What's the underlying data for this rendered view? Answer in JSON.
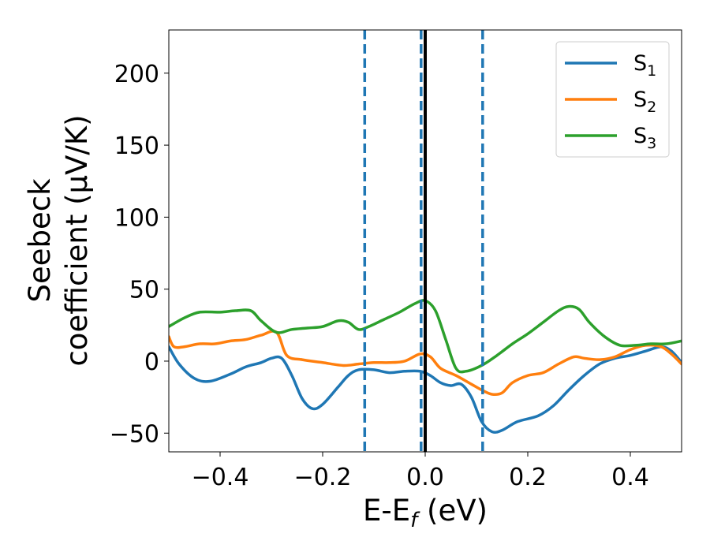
{
  "chart_data": {
    "type": "line",
    "xlabel": {
      "main": "E-E",
      "sub": "f",
      "tail": " (eV)"
    },
    "ylabel": {
      "line1": "Seebeck",
      "line2": "coefficient  (μV/K)"
    },
    "xlim": [
      -0.5,
      0.5
    ],
    "ylim": [
      -63,
      230
    ],
    "x_ticks": [
      -0.4,
      -0.2,
      0.0,
      0.2,
      0.4
    ],
    "x_tick_labels": [
      "−0.4",
      "−0.2",
      "0.0",
      "0.2",
      "0.4"
    ],
    "y_ticks": [
      -50,
      0,
      50,
      100,
      150,
      200
    ],
    "y_tick_labels": [
      "−50",
      "0",
      "50",
      "100",
      "150",
      "200"
    ],
    "grid": false,
    "legend_position": "top-right",
    "vertical_lines": [
      {
        "x": -0.118,
        "style": "dashed",
        "color": "#1f77b4"
      },
      {
        "x": -0.008,
        "style": "dashed",
        "color": "#1f77b4"
      },
      {
        "x": 0.112,
        "style": "dashed",
        "color": "#1f77b4"
      },
      {
        "x": 0.0,
        "style": "solid",
        "color": "#000000"
      }
    ],
    "series": [
      {
        "name": "S",
        "sub": "1",
        "color": "#1f77b4",
        "points": [
          [
            -0.5,
            10
          ],
          [
            -0.48,
            -2
          ],
          [
            -0.45,
            -12
          ],
          [
            -0.42,
            -14
          ],
          [
            -0.38,
            -9
          ],
          [
            -0.35,
            -4
          ],
          [
            -0.32,
            -1
          ],
          [
            -0.3,
            2
          ],
          [
            -0.28,
            2
          ],
          [
            -0.26,
            -10
          ],
          [
            -0.24,
            -26
          ],
          [
            -0.22,
            -33
          ],
          [
            -0.2,
            -30
          ],
          [
            -0.17,
            -18
          ],
          [
            -0.15,
            -10
          ],
          [
            -0.13,
            -6
          ],
          [
            -0.1,
            -6
          ],
          [
            -0.07,
            -8
          ],
          [
            -0.04,
            -7
          ],
          [
            -0.01,
            -7
          ],
          [
            0.01,
            -10
          ],
          [
            0.03,
            -15
          ],
          [
            0.05,
            -17
          ],
          [
            0.07,
            -16
          ],
          [
            0.09,
            -25
          ],
          [
            0.11,
            -42
          ],
          [
            0.13,
            -49
          ],
          [
            0.15,
            -48
          ],
          [
            0.18,
            -42
          ],
          [
            0.22,
            -38
          ],
          [
            0.25,
            -31
          ],
          [
            0.28,
            -20
          ],
          [
            0.31,
            -10
          ],
          [
            0.34,
            -2
          ],
          [
            0.37,
            2
          ],
          [
            0.4,
            4
          ],
          [
            0.43,
            7
          ],
          [
            0.46,
            10
          ],
          [
            0.48,
            7
          ],
          [
            0.5,
            -1
          ]
        ]
      },
      {
        "name": "S",
        "sub": "2",
        "color": "#ff7f0e",
        "points": [
          [
            -0.5,
            17
          ],
          [
            -0.49,
            10
          ],
          [
            -0.47,
            10
          ],
          [
            -0.44,
            12
          ],
          [
            -0.41,
            12
          ],
          [
            -0.38,
            14
          ],
          [
            -0.35,
            15
          ],
          [
            -0.32,
            18
          ],
          [
            -0.29,
            20
          ],
          [
            -0.27,
            4
          ],
          [
            -0.24,
            1
          ],
          [
            -0.2,
            -1
          ],
          [
            -0.16,
            -3
          ],
          [
            -0.13,
            -2
          ],
          [
            -0.1,
            -1
          ],
          [
            -0.07,
            -1
          ],
          [
            -0.04,
            0
          ],
          [
            -0.01,
            5
          ],
          [
            0.01,
            3
          ],
          [
            0.03,
            -5
          ],
          [
            0.06,
            -10
          ],
          [
            0.09,
            -16
          ],
          [
            0.11,
            -20
          ],
          [
            0.13,
            -23
          ],
          [
            0.15,
            -22
          ],
          [
            0.17,
            -15
          ],
          [
            0.2,
            -10
          ],
          [
            0.23,
            -8
          ],
          [
            0.26,
            -2
          ],
          [
            0.29,
            3
          ],
          [
            0.31,
            2
          ],
          [
            0.34,
            1
          ],
          [
            0.37,
            3
          ],
          [
            0.4,
            8
          ],
          [
            0.43,
            11
          ],
          [
            0.46,
            10
          ],
          [
            0.48,
            5
          ],
          [
            0.5,
            -2
          ]
        ]
      },
      {
        "name": "S",
        "sub": "3",
        "color": "#2ca02c",
        "points": [
          [
            -0.5,
            24
          ],
          [
            -0.47,
            30
          ],
          [
            -0.44,
            34
          ],
          [
            -0.4,
            34
          ],
          [
            -0.37,
            35
          ],
          [
            -0.34,
            35
          ],
          [
            -0.32,
            28
          ],
          [
            -0.29,
            20
          ],
          [
            -0.26,
            22
          ],
          [
            -0.23,
            23
          ],
          [
            -0.2,
            24
          ],
          [
            -0.17,
            28
          ],
          [
            -0.15,
            27
          ],
          [
            -0.13,
            22
          ],
          [
            -0.11,
            24
          ],
          [
            -0.08,
            29
          ],
          [
            -0.05,
            34
          ],
          [
            -0.02,
            40
          ],
          [
            0.0,
            42
          ],
          [
            0.02,
            35
          ],
          [
            0.04,
            15
          ],
          [
            0.06,
            -5
          ],
          [
            0.08,
            -7
          ],
          [
            0.11,
            -3
          ],
          [
            0.14,
            4
          ],
          [
            0.17,
            12
          ],
          [
            0.2,
            19
          ],
          [
            0.23,
            27
          ],
          [
            0.26,
            35
          ],
          [
            0.28,
            38
          ],
          [
            0.3,
            36
          ],
          [
            0.32,
            27
          ],
          [
            0.35,
            17
          ],
          [
            0.38,
            11
          ],
          [
            0.41,
            11
          ],
          [
            0.44,
            12
          ],
          [
            0.47,
            12
          ],
          [
            0.5,
            14
          ]
        ]
      }
    ]
  }
}
